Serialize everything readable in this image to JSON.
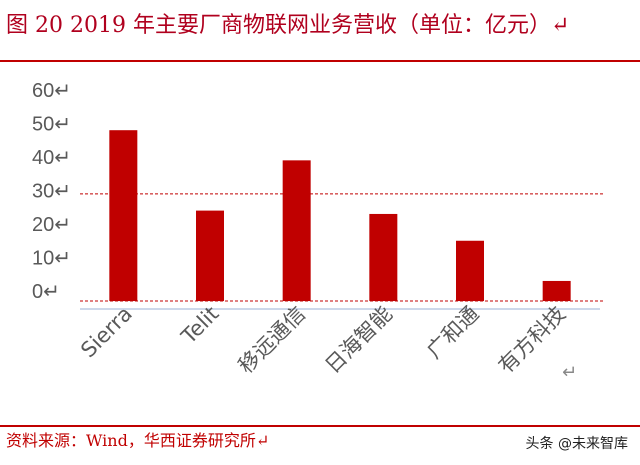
{
  "title": "图 20 2019 年主要厂商物联网业务营收（单位：亿元）↵",
  "source": "资料来源：Wind，华西证券研究所↵",
  "watermark": "头条 @未来智库",
  "return_mark": "↵",
  "colors": {
    "bar": "#c00000",
    "refline": "#c00000",
    "axis": "#9bb0d6",
    "text": "#595959",
    "accent": "#b0001e"
  },
  "chart_data": {
    "type": "bar",
    "categories": [
      "Sierra",
      "Telit",
      "移远通信",
      "日海智能",
      "广和通",
      "有方科技"
    ],
    "values": [
      48,
      24,
      39,
      23,
      15,
      3
    ],
    "ylim": [
      -3,
      62
    ],
    "yticks": [
      "60↵",
      "50↵",
      "40↵",
      "30↵",
      "20↵",
      "10↵",
      "0↵"
    ],
    "ytick_values": [
      60,
      50,
      40,
      30,
      20,
      10,
      0
    ],
    "reference_lines": [
      29,
      -3
    ],
    "xlabel": "",
    "ylabel": "",
    "grid": false
  }
}
